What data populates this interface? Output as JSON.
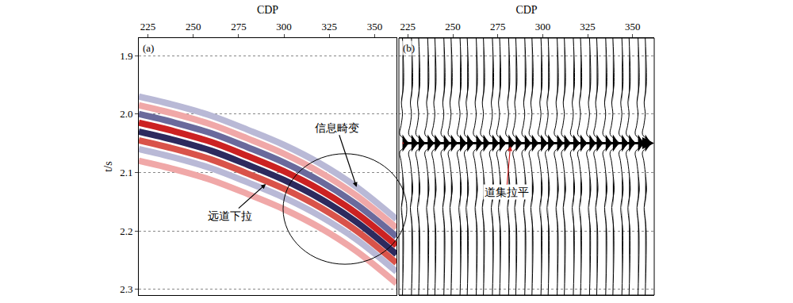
{
  "chart_data": [
    {
      "type": "line",
      "panel_label": "(a)",
      "x_title": "CDP",
      "y_title": "t/s",
      "xlim": [
        220,
        362
      ],
      "xticks": [
        225,
        250,
        275,
        300,
        325,
        350
      ],
      "ylim": [
        1.87,
        2.31
      ],
      "yticks": [
        1.9,
        {
          "value": 2,
          "label": "2.0"
        },
        2.1,
        2.2,
        2.3
      ],
      "grid": true,
      "x": [
        220,
        240,
        260,
        280,
        300,
        320,
        340,
        362
      ],
      "series": [
        {
          "color": "#b9b9d6",
          "values": [
            1.97,
            1.985,
            2.003,
            2.027,
            2.053,
            2.085,
            2.125,
            2.18
          ]
        },
        {
          "color": "#f0a8a8",
          "values": [
            1.985,
            2.0,
            2.018,
            2.042,
            2.068,
            2.1,
            2.14,
            2.195
          ]
        },
        {
          "color": "#f0a8a8",
          "values": [
            2.08,
            2.095,
            2.113,
            2.137,
            2.163,
            2.195,
            2.235,
            2.29
          ]
        },
        {
          "color": "#b9b9d6",
          "values": [
            2.06,
            2.075,
            2.093,
            2.117,
            2.143,
            2.175,
            2.215,
            2.27
          ]
        },
        {
          "color": "#6a6a9c",
          "values": [
            2.0,
            2.015,
            2.033,
            2.057,
            2.083,
            2.115,
            2.155,
            2.21
          ]
        },
        {
          "color": "#d9534a",
          "values": [
            2.045,
            2.06,
            2.078,
            2.102,
            2.128,
            2.16,
            2.2,
            2.255
          ]
        },
        {
          "color": "#2d2a5e",
          "values": [
            2.03,
            2.045,
            2.063,
            2.087,
            2.113,
            2.145,
            2.185,
            2.24
          ]
        },
        {
          "color": "#cc2222",
          "values": [
            2.015,
            2.03,
            2.048,
            2.072,
            2.098,
            2.13,
            2.17,
            2.225
          ]
        }
      ],
      "annotations": [
        {
          "text": "远道下拉",
          "at": [
            290,
            2.12
          ]
        },
        {
          "text": "信息畸变",
          "at": [
            340,
            2.125
          ]
        }
      ]
    },
    {
      "type": "wiggle",
      "panel_label": "(b)",
      "x_title": "CDP",
      "xlim": [
        220,
        362
      ],
      "xticks": [
        225,
        250,
        275,
        300,
        325,
        350
      ],
      "ylim": [
        1.87,
        2.31
      ],
      "yticks": [
        1.9,
        {
          "value": 2,
          "label": "2.0"
        },
        2.1,
        2.2,
        2.3
      ],
      "grid": true,
      "traces": [
        222,
        227,
        231,
        236,
        240,
        245,
        249,
        254,
        258,
        263,
        267,
        272,
        276,
        281,
        285,
        290,
        294,
        299,
        303,
        308,
        312,
        317,
        321,
        326,
        330,
        335,
        339,
        344,
        348,
        353,
        357
      ],
      "wavelet": {
        "t": [
          1.87,
          1.95,
          1.98,
          2.0,
          2.02,
          2.035,
          2.05,
          2.065,
          2.08,
          2.1,
          2.13,
          2.16,
          2.2,
          2.31
        ],
        "amplitude": [
          0,
          0.6,
          -0.6,
          0,
          -0.8,
          -1.5,
          3.2,
          -1.5,
          -0.8,
          0,
          0.7,
          -0.6,
          0.5,
          0
        ]
      },
      "event_time": 2.05,
      "color": "#000000",
      "annotations": [
        {
          "text": "道集拉平",
          "at": [
            282,
            2.055
          ]
        }
      ]
    }
  ]
}
